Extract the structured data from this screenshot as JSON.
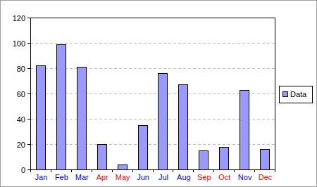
{
  "chart_data": {
    "type": "bar",
    "categories": [
      "Jan",
      "Feb",
      "Mar",
      "Apr",
      "May",
      "Jun",
      "Jul",
      "Aug",
      "Sep",
      "Oct",
      "Nov",
      "Dec"
    ],
    "series": [
      {
        "name": "Data",
        "color": "#9999ff",
        "values": [
          82,
          99,
          81,
          20,
          4,
          35,
          76,
          67,
          15,
          18,
          63,
          16
        ]
      }
    ],
    "ylim": [
      0,
      120
    ],
    "yticks": [
      0,
      20,
      40,
      60,
      80,
      100,
      120
    ],
    "grid": true,
    "legend": "right"
  }
}
